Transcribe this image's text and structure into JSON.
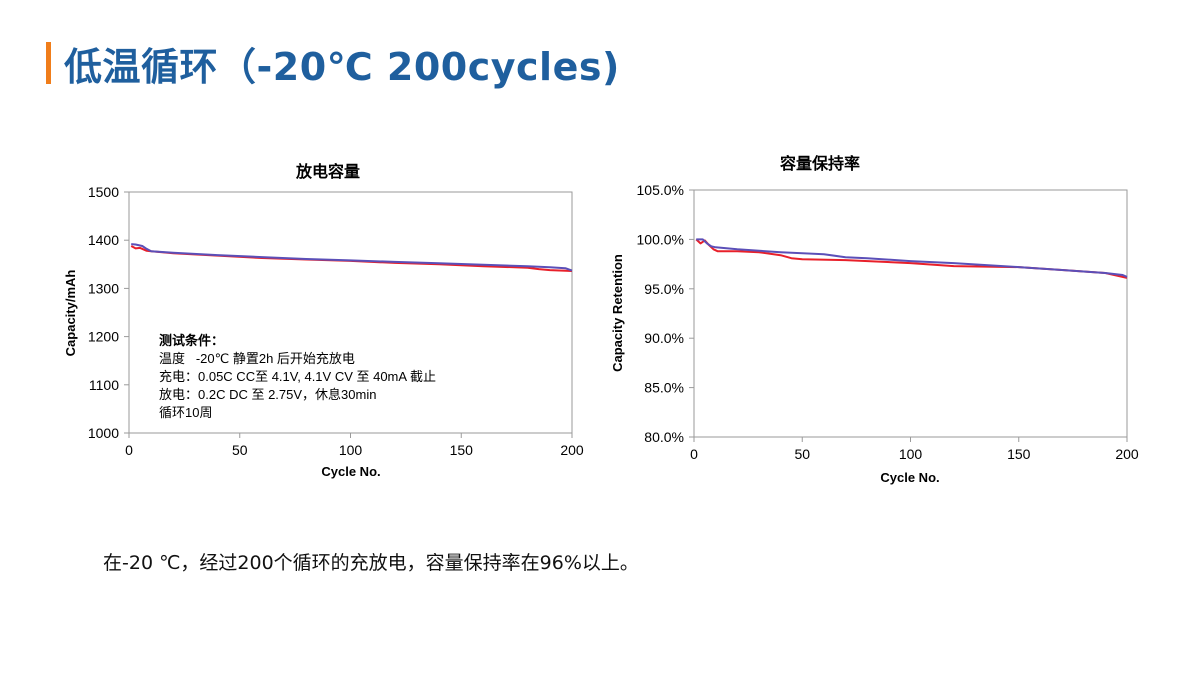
{
  "page": {
    "title": "低温循环（-20℃ 200cycles)",
    "conclusion": "在-20 ℃，经过200个循环的充放电，容量保持率在96%以上。"
  },
  "colors": {
    "accent_bar": "#f07d1a",
    "title": "#1f5f9e",
    "series_red": "#e8202a",
    "series_blue": "#5b4fb8"
  },
  "test_conditions": {
    "heading": "测试条件：",
    "lines": [
      "温度   -20℃ 静置2h 后开始充放电",
      "充电：0.05C CC至 4.1V, 4.1V CV 至 40mA 截止",
      "放电：0.2C DC 至 2.75V，休息30min",
      "循环10周"
    ]
  },
  "chart_data": [
    {
      "type": "line",
      "title": "放电容量",
      "xlabel": "Cycle No.",
      "ylabel": "Capacity/mAh",
      "xlim": [
        0,
        200
      ],
      "ylim": [
        1000,
        1500
      ],
      "x_ticks": [
        "0",
        "50",
        "100",
        "150",
        "200"
      ],
      "y_ticks": [
        "1000",
        "1100",
        "1200",
        "1300",
        "1400",
        "1500"
      ],
      "grid": false,
      "series": [
        {
          "color": "#e8202a",
          "x": [
            1,
            3,
            5,
            8,
            10,
            20,
            40,
            60,
            80,
            100,
            120,
            140,
            160,
            180,
            185,
            190,
            200
          ],
          "y": [
            1388,
            1383,
            1384,
            1378,
            1377,
            1373,
            1368,
            1363,
            1360,
            1357,
            1353,
            1350,
            1346,
            1343,
            1340,
            1338,
            1336
          ]
        },
        {
          "color": "#5b4fb8",
          "x": [
            1,
            3,
            6,
            8,
            10,
            20,
            40,
            60,
            80,
            100,
            120,
            140,
            160,
            180,
            190,
            197,
            200
          ],
          "y": [
            1392,
            1391,
            1388,
            1382,
            1377,
            1374,
            1369,
            1365,
            1361,
            1358,
            1355,
            1352,
            1349,
            1346,
            1344,
            1342,
            1337
          ]
        }
      ]
    },
    {
      "type": "line",
      "title": "容量保持率",
      "xlabel": "Cycle No.",
      "ylabel": "Capacity Retention",
      "xlim": [
        0,
        200
      ],
      "ylim": [
        80,
        105
      ],
      "x_ticks": [
        "0",
        "50",
        "100",
        "150",
        "200"
      ],
      "y_ticks": [
        "80.0%",
        "85.0%",
        "90.0%",
        "95.0%",
        "100.0%",
        "105.0%"
      ],
      "grid": false,
      "series": [
        {
          "color": "#e8202a",
          "x": [
            1,
            3,
            5,
            7,
            9,
            11,
            20,
            30,
            40,
            45,
            50,
            70,
            100,
            120,
            150,
            170,
            190,
            200
          ],
          "y": [
            100,
            99.6,
            99.9,
            99.4,
            99.0,
            98.8,
            98.8,
            98.7,
            98.4,
            98.1,
            98.0,
            97.9,
            97.6,
            97.3,
            97.2,
            96.9,
            96.6,
            96.1
          ]
        },
        {
          "color": "#5b4fb8",
          "x": [
            1,
            4,
            6,
            8,
            10,
            20,
            40,
            60,
            70,
            80,
            100,
            120,
            150,
            170,
            190,
            198,
            200
          ],
          "y": [
            100,
            100,
            99.6,
            99.3,
            99.2,
            99.0,
            98.7,
            98.5,
            98.2,
            98.1,
            97.8,
            97.6,
            97.2,
            96.9,
            96.6,
            96.4,
            96.2
          ]
        }
      ]
    }
  ]
}
